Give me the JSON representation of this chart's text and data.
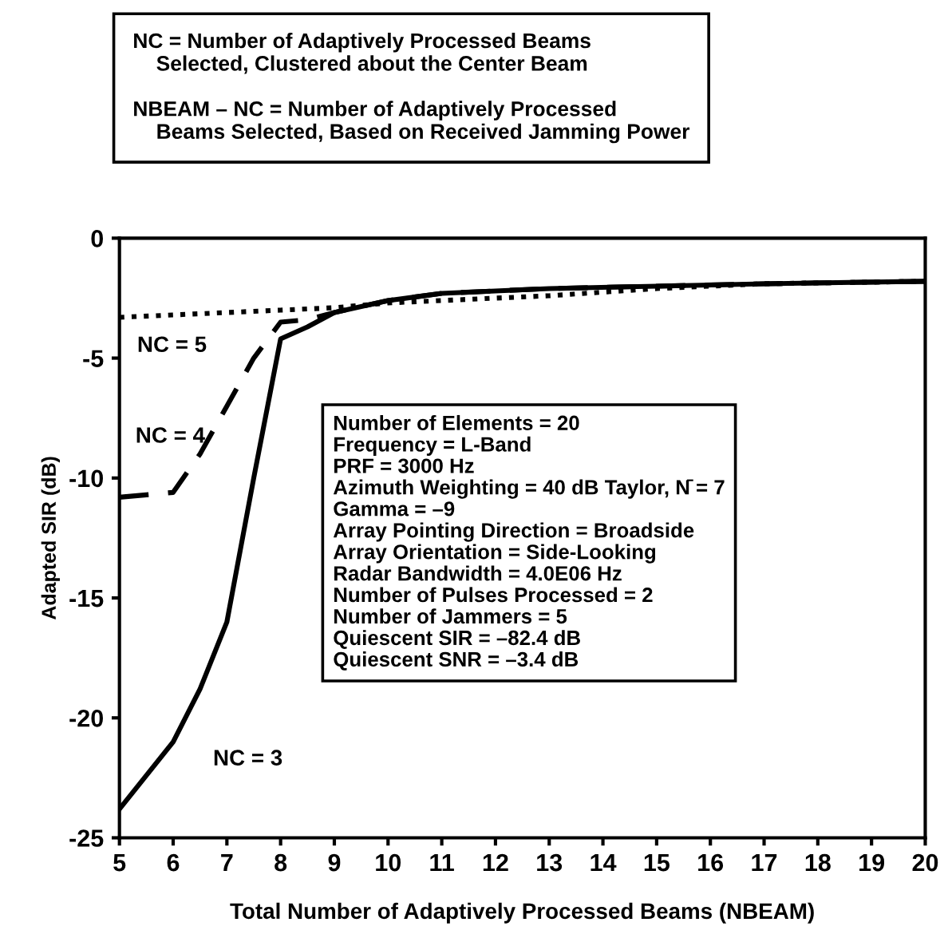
{
  "chart_data": {
    "type": "line",
    "xlabel": "Total Number of Adaptively Processed Beams (NBEAM)",
    "ylabel": "Adapted SIR (dB)",
    "xlim": [
      5,
      20
    ],
    "xticks": [
      5,
      6,
      7,
      8,
      9,
      10,
      11,
      12,
      13,
      14,
      15,
      16,
      17,
      18,
      19,
      20
    ],
    "ylim": [
      -25,
      0
    ],
    "yticks": [
      -25,
      -20,
      -15,
      -10,
      -5,
      0
    ],
    "grid": false,
    "marker": "none",
    "series": [
      {
        "name": "NC = 3",
        "color": "#000000",
        "line_style": "solid",
        "x": [
          5,
          6,
          6.5,
          7,
          7.5,
          8,
          8.5,
          9,
          10,
          11,
          12,
          13,
          15,
          17,
          20
        ],
        "values": [
          -23.8,
          -21,
          -18.8,
          -16,
          -10,
          -4.2,
          -3.7,
          -3.1,
          -2.6,
          -2.3,
          -2.2,
          -2.1,
          -2.0,
          -1.9,
          -1.8
        ]
      },
      {
        "name": "NC = 4",
        "color": "#000000",
        "line_style": "dashed",
        "x": [
          5,
          6,
          6.5,
          7,
          7.5,
          8,
          8.5,
          9,
          10,
          11,
          12,
          13,
          15,
          17,
          20
        ],
        "values": [
          -10.8,
          -10.6,
          -9.0,
          -7.0,
          -5.0,
          -3.5,
          -3.4,
          -3.1,
          -2.6,
          -2.3,
          -2.2,
          -2.1,
          -2.0,
          -1.9,
          -1.8
        ]
      },
      {
        "name": "NC = 5",
        "color": "#000000",
        "line_style": "dotted",
        "x": [
          5,
          6,
          7,
          8,
          9,
          10,
          11,
          12,
          13,
          15,
          17,
          20
        ],
        "values": [
          -3.3,
          -3.2,
          -3.1,
          -3.0,
          -2.9,
          -2.7,
          -2.6,
          -2.5,
          -2.4,
          -2.1,
          -1.9,
          -1.8
        ]
      }
    ],
    "annotations": [
      "NC = Number of Adaptively Processed Beams\n    Selected, Clustered about the Center Beam\n\nNBEAM – NC = Number of Adaptively Processed\n    Beams Selected, Based on Received Jamming Power",
      "Number of Elements = 20\nFrequency = L-Band\nPRF = 3000 Hz\nAzimuth Weighting = 40 dB Taylor, N̄ = 7\nGamma = –9\nArray Pointing Direction = Broadside\nArray Orientation = Side-Looking\nRadar Bandwidth = 4.0E06 Hz\nNumber of Pulses Processed = 2\nNumber of Jammers = 5\nQuiescent SIR = –82.4 dB\nQuiescent SNR = –3.4 dB"
    ]
  }
}
